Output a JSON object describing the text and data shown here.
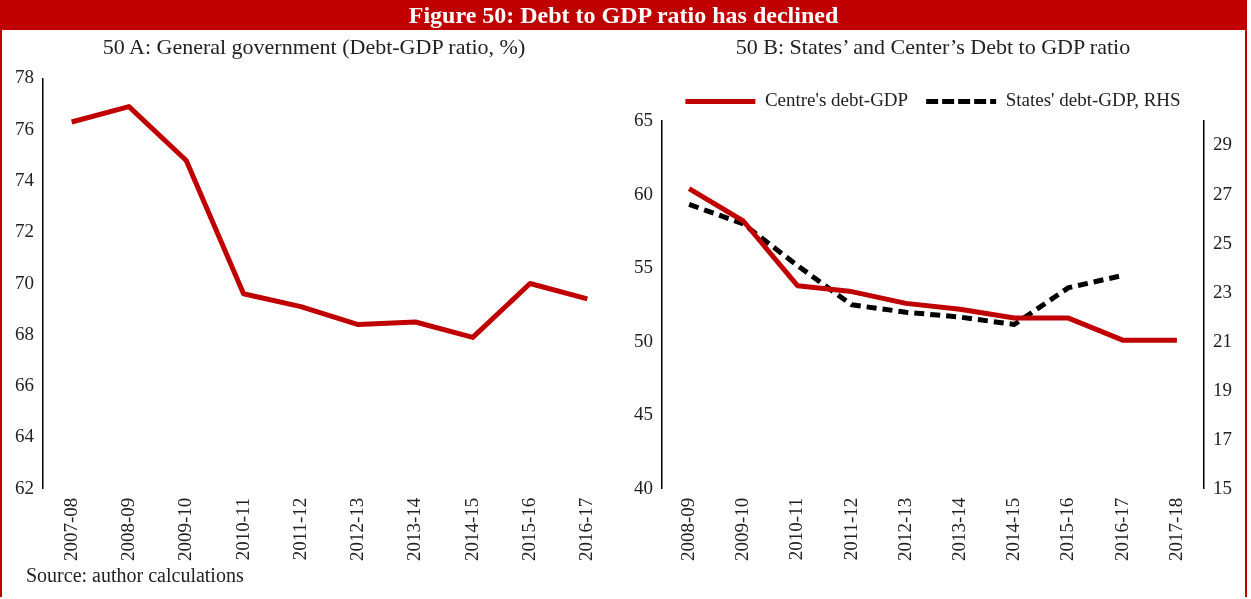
{
  "chart_data": [
    {
      "type": "line",
      "title": "Figure 50: Debt to GDP ratio has declined",
      "subtitle": "50 A: General government (Debt-GDP ratio, %)",
      "categories": [
        "2007-08",
        "2008-09",
        "2009-10",
        "2010-11",
        "2011-12",
        "2012-13",
        "2013-14",
        "2014-15",
        "2015-16",
        "2016-17"
      ],
      "series": [
        {
          "color": "#c00000",
          "values": [
            76.3,
            76.9,
            74.8,
            69.6,
            69.1,
            68.4,
            68.5,
            67.9,
            70.0,
            69.4
          ]
        }
      ],
      "ylim": [
        62,
        78
      ],
      "yticks": [
        62,
        64,
        66,
        68,
        70,
        72,
        74,
        76,
        78
      ],
      "grid": false,
      "legend": false,
      "marker": "none",
      "line_style": "solid",
      "annotations": [
        "Source: author calculations"
      ]
    },
    {
      "type": "line",
      "subtitle": "50 B: States’ and Center’s Debt to GDP ratio",
      "categories": [
        "2008-09",
        "2009-10",
        "2010-11",
        "2011-12",
        "2012-13",
        "2013-14",
        "2014-15",
        "2015-16",
        "2016-17",
        "2017-18"
      ],
      "series": [
        {
          "name": "Centre's debt-GDP",
          "color": "#c00000",
          "line_style": "solid",
          "values": [
            60.4,
            58.2,
            53.8,
            53.4,
            52.6,
            52.2,
            51.6,
            51.6,
            50.1,
            50.1
          ]
        },
        {
          "name": "States' debt-GDP, RHS",
          "color": "#000000",
          "line_style": "dashed",
          "axis": "y2",
          "values": [
            26.6,
            25.8,
            24.1,
            22.5,
            22.2,
            22.0,
            21.7,
            23.2,
            23.7,
            null
          ]
        }
      ],
      "ylim": [
        40,
        65
      ],
      "yticks": [
        40,
        45,
        50,
        55,
        60,
        65
      ],
      "y2lim": [
        15,
        30
      ],
      "y2ticks": [
        15,
        17,
        19,
        21,
        23,
        25,
        27,
        29
      ],
      "grid": false,
      "legend": "top",
      "marker": "none"
    }
  ]
}
